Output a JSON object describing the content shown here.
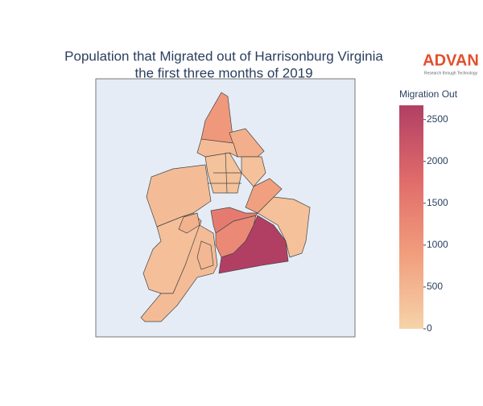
{
  "chart_data": {
    "type": "choropleth",
    "title": [
      "Population that Migrated out of Harrisonburg Virginia",
      "the first three months of 2019"
    ],
    "values": [
      1000,
      600,
      380,
      330,
      380,
      300,
      2670,
      1250,
      1500,
      850,
      280,
      300,
      550,
      450,
      380
    ],
    "colorbar": {
      "title": "Migration Out",
      "lim": [
        0,
        2670
      ],
      "ticks": [
        0,
        500,
        1000,
        1500,
        2000,
        2500
      ],
      "colorscale": [
        "#f6d3a9",
        "#f19e7d",
        "#e06b6a",
        "#b13f64"
      ]
    },
    "background": "#e5ecf6"
  },
  "logo": {
    "text": "ADVAN",
    "tagline": "Research through Technology"
  }
}
